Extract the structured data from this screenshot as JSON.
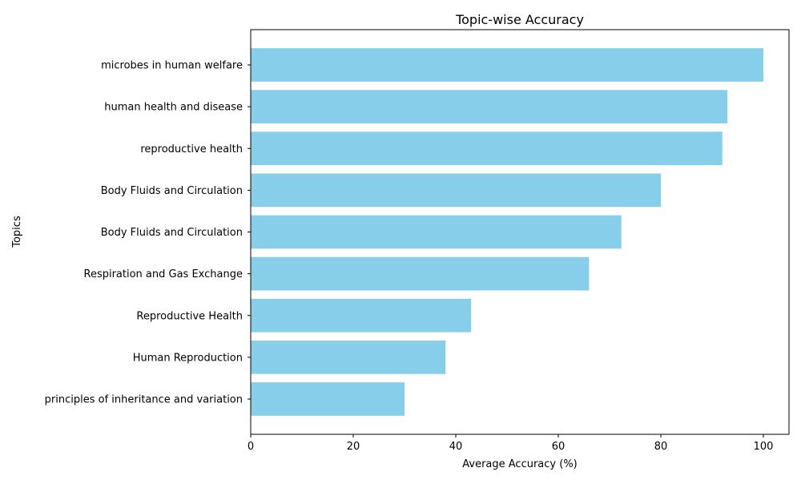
{
  "chart_data": {
    "type": "bar",
    "orientation": "horizontal",
    "title": "Topic-wise Accuracy",
    "xlabel": "Average Accuracy (%)",
    "ylabel": "Topics",
    "categories": [
      "microbes in human welfare",
      "human health and disease ",
      "reproductive health ",
      "Body Fluids and Circulation ",
      "Body Fluids and Circulation",
      "Respiration and Gas Exchange",
      "Reproductive Health",
      "Human Reproduction",
      "principles of inheritance and variation "
    ],
    "values": [
      100,
      93,
      92,
      80,
      72.3,
      66,
      43,
      38,
      30
    ],
    "xlim": [
      0,
      105
    ],
    "xticks": [
      0,
      20,
      40,
      60,
      80,
      100
    ],
    "bar_color": "#87ceeb",
    "grid": false,
    "legend": "none"
  }
}
